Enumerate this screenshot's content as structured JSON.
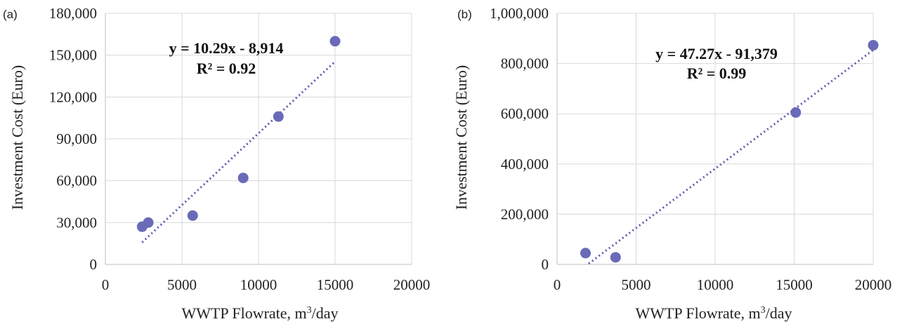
{
  "chart_data": [
    {
      "type": "scatter",
      "panel_label": "(a)",
      "xlabel": "WWTP Flowrate, m³/day",
      "ylabel": "Investment Cost (Euro)",
      "xlim": [
        0,
        20000
      ],
      "ylim": [
        0,
        180000
      ],
      "x_ticks": [
        0,
        5000,
        10000,
        15000,
        20000
      ],
      "y_ticks": [
        0,
        30000,
        60000,
        90000,
        120000,
        150000,
        180000
      ],
      "x_tick_labels": [
        "0",
        "5000",
        "10000",
        "15000",
        "20000"
      ],
      "y_tick_labels": [
        "0",
        "30,000",
        "60,000",
        "90,000",
        "120,000",
        "150,000",
        "180,000"
      ],
      "grid": true,
      "color": "#6a6ab8",
      "points": [
        {
          "x": 2400,
          "y": 27000
        },
        {
          "x": 2800,
          "y": 30000
        },
        {
          "x": 5700,
          "y": 35000
        },
        {
          "x": 9000,
          "y": 62000
        },
        {
          "x": 11300,
          "y": 106000
        },
        {
          "x": 15000,
          "y": 160000
        }
      ],
      "trendline": {
        "slope": 10.29,
        "intercept": -8914,
        "x_range": [
          2400,
          15000
        ]
      },
      "equation": "y = 10.29x - 8,914",
      "r2": "R² = 0.92"
    },
    {
      "type": "scatter",
      "panel_label": "(b)",
      "xlabel": "WWTP Flowrate, m³/day",
      "ylabel": "Investment Cost (Euro)",
      "xlim": [
        0,
        20000
      ],
      "ylim": [
        0,
        1000000
      ],
      "x_ticks": [
        0,
        5000,
        10000,
        15000,
        20000
      ],
      "y_ticks": [
        0,
        200000,
        400000,
        600000,
        800000,
        1000000
      ],
      "x_tick_labels": [
        "0",
        "5000",
        "10000",
        "15000",
        "20000"
      ],
      "y_tick_labels": [
        "0",
        "200,000",
        "400,000",
        "600,000",
        "800,000",
        "1,000,000"
      ],
      "grid": true,
      "color": "#6a6ab8",
      "points": [
        {
          "x": 1800,
          "y": 45000
        },
        {
          "x": 3700,
          "y": 28000
        },
        {
          "x": 15100,
          "y": 605000
        },
        {
          "x": 20000,
          "y": 873000
        }
      ],
      "trendline": {
        "slope": 47.27,
        "intercept": -91379,
        "x_range": [
          2000,
          20000
        ]
      },
      "equation": "y = 47.27x - 91,379",
      "r2": "R² = 0.99"
    }
  ]
}
